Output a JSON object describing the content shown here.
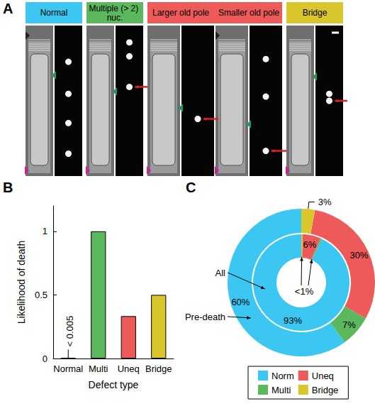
{
  "panel_labels": [
    "A",
    "B",
    "C"
  ],
  "panel_a": {
    "headers": [
      {
        "text": "Normal",
        "color": "#3cc6f2"
      },
      {
        "text": "Multiple (> 2) nuc.",
        "color": "#5cb85c"
      },
      {
        "text": "Larger old pole",
        "color": "#ee5a5a"
      },
      {
        "text": "Smaller old pole",
        "color": "#ee5a5a"
      },
      {
        "text": "Bridge",
        "color": "#d9c52c"
      }
    ]
  },
  "chart_data": [
    {
      "type": "bar",
      "categories": [
        "Normal",
        "Multi",
        "Uneq",
        "Bridge"
      ],
      "values": [
        0.003,
        1,
        0.333,
        0.5
      ],
      "colors": [
        "#3cc6f2",
        "#5cb85c",
        "#ee5a5a",
        "#d9c52c"
      ],
      "ylim": [
        0,
        1.2
      ],
      "yticks": [
        0,
        0.5,
        1
      ],
      "y_label": "Likelihood of death",
      "x_label": "Defect type",
      "grid": false,
      "annotations": [
        {
          "text": "< 0.005",
          "category": "Normal"
        }
      ]
    },
    {
      "type": "pie",
      "colors": [
        "#3cc6f2",
        "#5cb85c",
        "#ee5a5a",
        "#d9c52c"
      ],
      "legend": "bottom",
      "data_labels": true,
      "rings": [
        {
          "name": "All",
          "categories": [
            "Norm",
            "Multi",
            "Uneq",
            "Bridge"
          ],
          "values": [
            93,
            0.5,
            6,
            0.5
          ],
          "value_labels": [
            "93%",
            null,
            "6%",
            null
          ]
        },
        {
          "name": "Pre-death",
          "categories": [
            "Norm",
            "Multi",
            "Uneq",
            "Bridge"
          ],
          "values": [
            60,
            7,
            30,
            3
          ],
          "value_labels": [
            "60%",
            "7%",
            "30%",
            "3%"
          ]
        }
      ],
      "annotations": [
        {
          "text": "<1%"
        }
      ]
    }
  ]
}
